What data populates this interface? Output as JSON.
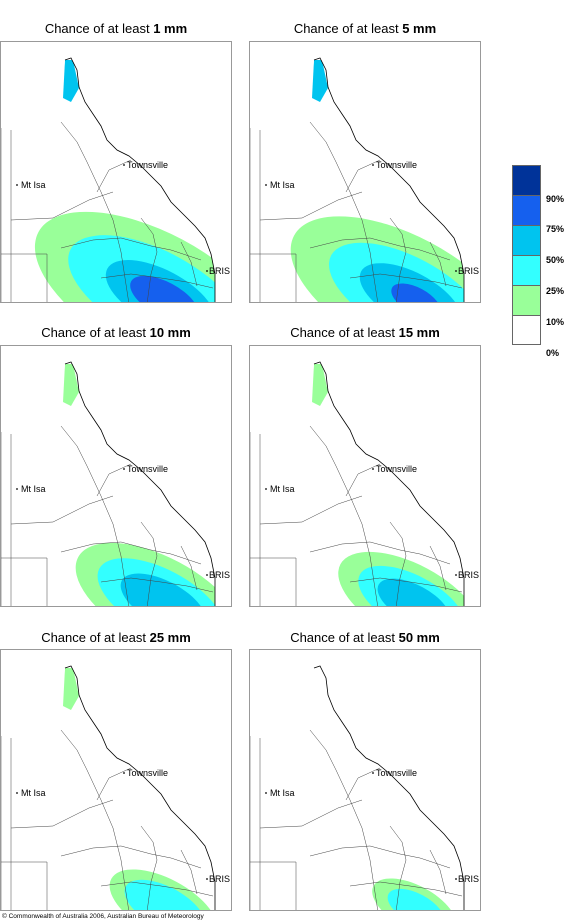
{
  "panels": [
    {
      "prefix": "Chance of at least ",
      "amount": "1 mm",
      "levels": [
        0.85,
        0.7,
        0.45,
        0.25
      ]
    },
    {
      "prefix": "Chance of at least ",
      "amount": "5 mm",
      "levels": [
        0.8,
        0.6,
        0.4,
        0.1
      ]
    },
    {
      "prefix": "Chance of at least ",
      "amount": "10 mm",
      "levels": [
        0.55,
        0.45,
        0.3,
        0.0
      ]
    },
    {
      "prefix": "Chance of at least ",
      "amount": "15 mm",
      "levels": [
        0.45,
        0.35,
        0.22,
        0.0
      ]
    },
    {
      "prefix": "Chance of at least ",
      "amount": "25 mm",
      "levels": [
        0.3,
        0.22,
        0.0,
        0.0
      ]
    },
    {
      "prefix": "Chance of at least ",
      "amount": "50 mm",
      "levels": [
        0.2,
        0.1,
        0.0,
        0.0
      ]
    }
  ],
  "places": {
    "townsville": "Townsville",
    "mt_isa": "Mt Isa",
    "bris": "BRIS"
  },
  "legend": {
    "ticks": [
      "90%",
      "75%",
      "50%",
      "25%",
      "10%",
      "0%"
    ],
    "colors": [
      "#003399",
      "#1560ee",
      "#00c4ef",
      "#33ffff",
      "#99ff99",
      "#ffffff"
    ]
  },
  "copyright": "© Commonwealth of Australia 2006, Australian Bureau of Meteorology"
}
